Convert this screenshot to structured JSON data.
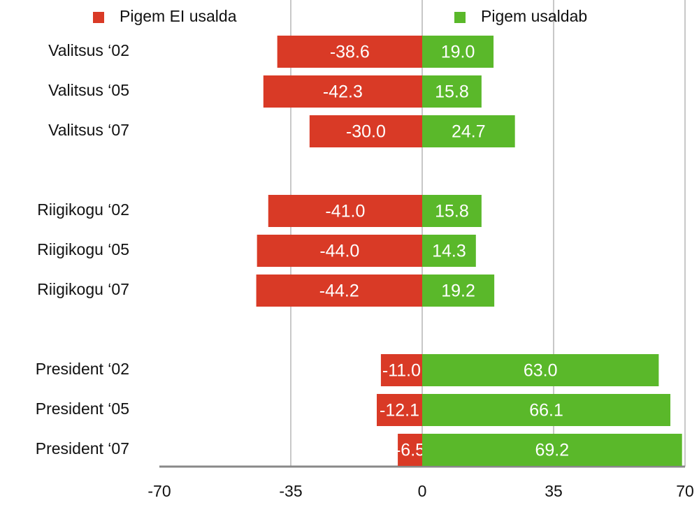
{
  "chart_data": {
    "type": "bar",
    "orientation": "horizontal",
    "categories": [
      "Valitsus ‘02",
      "Valitsus ‘05",
      "Valitsus ‘07",
      null,
      "Riigikogu ‘02",
      "Riigikogu ‘05",
      "Riigikogu ‘07",
      null,
      "President ‘02",
      "President ‘05",
      "President ‘07"
    ],
    "series": [
      {
        "name": "Pigem EI usalda",
        "color": "#d93a26",
        "values": [
          -38.6,
          -42.3,
          -30.0,
          null,
          -41.0,
          -44.0,
          -44.2,
          null,
          -11.0,
          -12.1,
          -6.5
        ],
        "value_labels": [
          "-38.6",
          "-42.3",
          "-30.0",
          null,
          "-41.0",
          "-44.0",
          "-44.2",
          null,
          "-11.0",
          "-12.1",
          "-6.5"
        ]
      },
      {
        "name": "Pigem usaldab",
        "color": "#5ab82a",
        "values": [
          19.0,
          15.8,
          24.7,
          null,
          15.8,
          14.3,
          19.2,
          null,
          63.0,
          66.1,
          69.2
        ],
        "value_labels": [
          "19.0",
          "15.8",
          "24.7",
          null,
          "15.8",
          "14.3",
          "19.2",
          null,
          "63.0",
          "66.1",
          "69.2"
        ]
      }
    ],
    "xlim": [
      -70,
      70
    ],
    "xticks": [
      -70,
      -35,
      0,
      35,
      70
    ],
    "grid": true,
    "legend": "top"
  }
}
